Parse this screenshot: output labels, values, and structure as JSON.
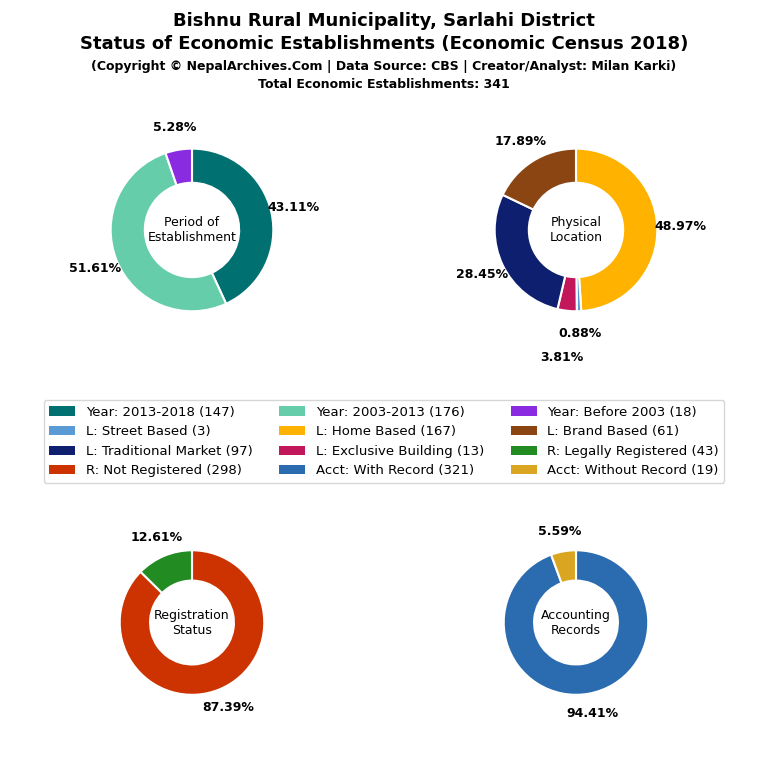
{
  "title": [
    "Bishnu Rural Municipality, Sarlahi District",
    "Status of Economic Establishments (Economic Census 2018)"
  ],
  "subtitle": [
    "(Copyright © NepalArchives.Com | Data Source: CBS | Creator/Analyst: Milan Karki)",
    "Total Economic Establishments: 341"
  ],
  "legend_entries": [
    {
      "name": "Year: 2013-2018 (147)",
      "color": "#007070"
    },
    {
      "name": "Year: 2003-2013 (176)",
      "color": "#66CDAA"
    },
    {
      "name": "Year: Before 2003 (18)",
      "color": "#8A2BE2"
    },
    {
      "name": "L: Street Based (3)",
      "color": "#5B9BD5"
    },
    {
      "name": "L: Home Based (167)",
      "color": "#FFB300"
    },
    {
      "name": "L: Brand Based (61)",
      "color": "#8B4513"
    },
    {
      "name": "L: Traditional Market (97)",
      "color": "#0D1F6E"
    },
    {
      "name": "L: Exclusive Building (13)",
      "color": "#C2185B"
    },
    {
      "name": "R: Legally Registered (43)",
      "color": "#228B22"
    },
    {
      "name": "R: Not Registered (298)",
      "color": "#CC3300"
    },
    {
      "name": "Acct: With Record (321)",
      "color": "#2B6CB0"
    },
    {
      "name": "Acct: Without Record (19)",
      "color": "#DAA520"
    }
  ],
  "chart_data": [
    {
      "type": "pie",
      "title": "Period of\nEstablishment",
      "values": [
        43.11,
        51.61,
        5.28
      ],
      "value_labels": [
        "43.11%",
        "51.61%",
        "5.28%"
      ],
      "colors": [
        "#007070",
        "#66CDAA",
        "#8A2BE2"
      ],
      "data_labels": true
    },
    {
      "type": "pie",
      "title": "Physical\nLocation",
      "values": [
        48.97,
        0.88,
        3.81,
        28.45,
        17.89
      ],
      "value_labels": [
        "48.97%",
        "0.88%",
        "3.81%",
        "28.45%",
        "17.89%"
      ],
      "colors": [
        "#FFB300",
        "#5B9BD5",
        "#C2185B",
        "#0D1F6E",
        "#8B4513"
      ],
      "data_labels": true
    },
    {
      "type": "pie",
      "title": "Registration\nStatus",
      "values": [
        87.39,
        12.61
      ],
      "value_labels": [
        "87.39%",
        "12.61%"
      ],
      "colors": [
        "#CC3300",
        "#228B22"
      ],
      "data_labels": true
    },
    {
      "type": "pie",
      "title": "Accounting\nRecords",
      "values": [
        94.41,
        5.59
      ],
      "value_labels": [
        "94.41%",
        "5.59%"
      ],
      "colors": [
        "#2B6CB0",
        "#DAA520"
      ],
      "data_labels": true
    }
  ]
}
